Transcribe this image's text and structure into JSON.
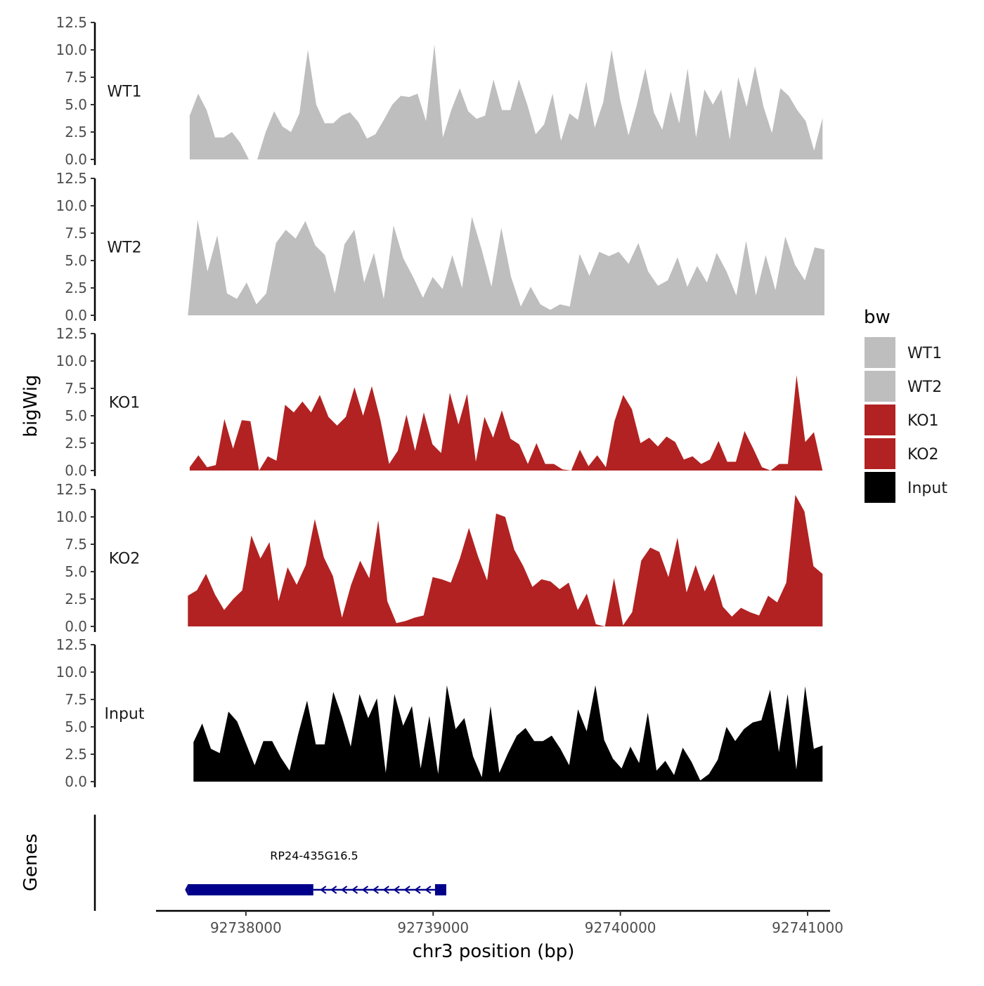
{
  "chart_data": {
    "type": "area",
    "ylabel": "bigWig",
    "xlabel": "chr3 position (bp)",
    "genes_label": "Genes",
    "xlim": [
      92737520,
      92741120
    ],
    "ylim": [
      0,
      12.5
    ],
    "y_ticks": [
      "0.0",
      "2.5",
      "5.0",
      "7.5",
      "10.0",
      "12.5"
    ],
    "x_ticks": [
      {
        "value": 92738000,
        "label": "92738000"
      },
      {
        "value": 92739000,
        "label": "92739000"
      },
      {
        "value": 92740000,
        "label": "92740000"
      },
      {
        "value": 92741000,
        "label": "92741000"
      }
    ],
    "legend": {
      "title": "bw",
      "entries": [
        {
          "label": "WT1",
          "color": "#bebebe"
        },
        {
          "label": "WT2",
          "color": "#bebebe"
        },
        {
          "label": "KO1",
          "color": "#b22222"
        },
        {
          "label": "KO2",
          "color": "#b22222"
        },
        {
          "label": "Input",
          "color": "#000000"
        }
      ]
    },
    "series": [
      {
        "name": "WT1",
        "color": "#bebebe",
        "x_start": 92737700,
        "x_end": 92741080,
        "values": [
          4.0,
          6.0,
          4.5,
          2.0,
          2.0,
          2.5,
          1.5,
          0.0,
          0.0,
          2.5,
          4.4,
          3.0,
          2.5,
          4.2,
          10.0,
          5.0,
          3.3,
          3.3,
          4.0,
          4.3,
          3.4,
          1.9,
          2.3,
          3.6,
          5.0,
          5.8,
          5.7,
          6.0,
          3.5,
          10.5,
          2.0,
          4.5,
          6.5,
          4.4,
          3.7,
          4.0,
          7.3,
          4.5,
          4.5,
          7.3,
          5.0,
          2.3,
          3.2,
          6.0,
          1.7,
          4.2,
          3.6,
          7.1,
          2.9,
          5.2,
          10.0,
          5.5,
          2.2,
          5.0,
          8.3,
          4.3,
          2.7,
          6.2,
          3.3,
          8.3,
          2.0,
          6.4,
          5.0,
          6.4,
          1.8,
          7.5,
          4.8,
          8.5,
          4.8,
          2.4,
          6.5,
          5.8,
          4.5,
          3.5,
          0.8,
          3.8
        ]
      },
      {
        "name": "WT2",
        "color": "#bebebe",
        "x_start": 92737690,
        "x_end": 92741090,
        "values": [
          0.0,
          8.7,
          4.0,
          7.3,
          2.0,
          1.5,
          3.0,
          1.0,
          2.0,
          6.6,
          7.8,
          7.0,
          8.6,
          6.4,
          5.5,
          2.0,
          6.5,
          7.8,
          3.0,
          5.7,
          1.5,
          8.2,
          5.2,
          3.5,
          1.6,
          3.5,
          2.4,
          5.5,
          2.5,
          9.0,
          6.0,
          2.6,
          8.0,
          3.5,
          0.8,
          2.6,
          1.0,
          0.5,
          1.0,
          0.8,
          5.6,
          3.6,
          5.8,
          5.4,
          5.8,
          4.7,
          6.6,
          4.0,
          2.7,
          3.2,
          5.3,
          2.6,
          4.5,
          3.0,
          5.7,
          4.0,
          1.8,
          6.8,
          1.8,
          5.5,
          2.3,
          7.2,
          4.6,
          3.2,
          6.2,
          6.0
        ]
      },
      {
        "name": "KO1",
        "color": "#b22222",
        "x_start": 92737700,
        "x_end": 92741080,
        "values": [
          0.3,
          1.4,
          0.3,
          0.5,
          4.7,
          2.0,
          4.6,
          4.5,
          0.0,
          1.3,
          0.9,
          6.0,
          5.3,
          6.3,
          5.3,
          6.9,
          4.9,
          4.1,
          4.9,
          7.6,
          5.0,
          7.7,
          4.6,
          0.6,
          1.8,
          5.1,
          1.8,
          5.3,
          2.4,
          1.6,
          7.1,
          4.2,
          7.0,
          0.8,
          4.9,
          3.0,
          5.5,
          2.9,
          2.4,
          0.6,
          2.5,
          0.6,
          0.6,
          0.1,
          0.0,
          1.9,
          0.4,
          1.4,
          0.3,
          4.5,
          6.9,
          5.6,
          2.5,
          3.0,
          2.2,
          3.1,
          2.6,
          1.0,
          1.3,
          0.6,
          1.0,
          2.7,
          0.8,
          0.8,
          3.6,
          2.0,
          0.3,
          0.0,
          0.6,
          0.6,
          8.7,
          2.6,
          3.5,
          0.0
        ]
      },
      {
        "name": "KO2",
        "color": "#b22222",
        "x_start": 92737690,
        "x_end": 92741080,
        "values": [
          2.8,
          3.3,
          4.8,
          2.9,
          1.5,
          2.5,
          3.3,
          8.3,
          6.2,
          7.7,
          2.3,
          5.4,
          3.8,
          5.6,
          9.8,
          6.3,
          4.6,
          0.8,
          3.8,
          6.0,
          4.4,
          9.7,
          2.3,
          0.3,
          0.5,
          0.8,
          1.0,
          4.5,
          4.3,
          4.0,
          6.2,
          9.0,
          6.4,
          4.2,
          10.3,
          10.0,
          7.0,
          5.5,
          3.6,
          4.3,
          4.1,
          3.4,
          4.0,
          1.5,
          3.0,
          0.2,
          0.0,
          4.4,
          0.1,
          1.3,
          6.0,
          7.2,
          6.8,
          4.5,
          8.1,
          3.1,
          5.6,
          3.2,
          4.8,
          1.8,
          0.9,
          1.7,
          1.3,
          1.0,
          2.8,
          2.2,
          4.0,
          12.0,
          10.5,
          5.5,
          4.8
        ]
      },
      {
        "name": "Input",
        "color": "#000000",
        "x_start": 92737720,
        "x_end": 92741080,
        "values": [
          3.6,
          5.3,
          3.0,
          2.6,
          6.4,
          5.5,
          3.5,
          1.5,
          3.7,
          3.7,
          2.2,
          1.0,
          4.4,
          7.4,
          3.4,
          3.4,
          8.2,
          5.9,
          3.2,
          8.0,
          5.8,
          7.6,
          0.8,
          8.0,
          5.1,
          6.9,
          1.2,
          6.0,
          0.7,
          8.8,
          4.8,
          5.8,
          2.3,
          0.4,
          6.9,
          0.8,
          2.6,
          4.2,
          4.9,
          3.7,
          3.7,
          4.2,
          3.0,
          1.5,
          6.6,
          4.6,
          8.8,
          3.8,
          2.1,
          1.2,
          3.2,
          1.7,
          6.3,
          1.0,
          1.9,
          0.6,
          3.1,
          1.8,
          0.1,
          0.7,
          2.0,
          5.0,
          3.7,
          4.8,
          5.4,
          5.6,
          8.4,
          2.7,
          8.0,
          1.1,
          8.7,
          3.0,
          3.3
        ]
      }
    ],
    "gene": {
      "name": "RP24-435G16.5",
      "color": "#00008b",
      "strand": "-",
      "start": 92737690,
      "thick_end": 92738360,
      "end": 92739070,
      "exon2_start": 92739010
    }
  }
}
